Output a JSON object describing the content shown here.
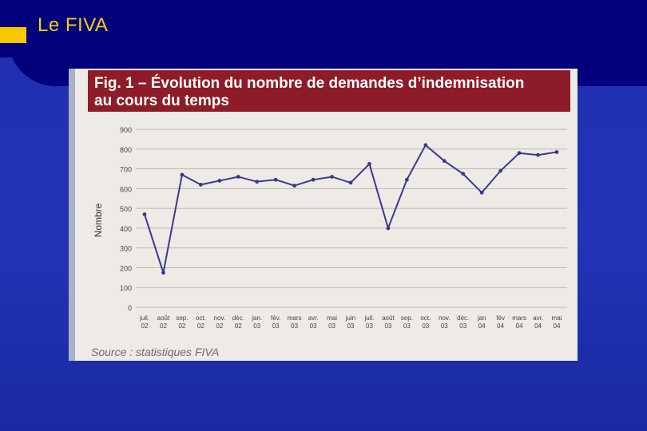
{
  "slide": {
    "title": "Le FIVA"
  },
  "figure": {
    "title_line1": "Fig. 1 – Évolution du nombre de demandes d’indemnisation",
    "title_line2": "au cours du temps",
    "source": "Source : statistiques FIVA"
  },
  "colors": {
    "background": "#2233b6",
    "header": "#02007d",
    "title_text": "#f4d10a",
    "bullet": "#f6c800",
    "figure_band": "#8e1c28",
    "line": "#3a3a8a",
    "grid": "#bdb8b4"
  },
  "chart_data": {
    "type": "line",
    "title": "Fig. 1 – Évolution du nombre de demandes d’indemnisation au cours du temps",
    "xlabel": "",
    "ylabel": "Nombre",
    "ylim": [
      0,
      900
    ],
    "yticks": [
      0,
      100,
      200,
      300,
      400,
      500,
      600,
      700,
      800,
      900
    ],
    "grid": true,
    "legend": "none",
    "categories": [
      [
        "juil.",
        "02"
      ],
      [
        "août",
        "02"
      ],
      [
        "sep.",
        "02"
      ],
      [
        "oct.",
        "02"
      ],
      [
        "nov.",
        "02"
      ],
      [
        "déc.",
        "02"
      ],
      [
        "jan.",
        "03"
      ],
      [
        "fév.",
        "03"
      ],
      [
        "mars",
        "03"
      ],
      [
        "avr.",
        "03"
      ],
      [
        "mai",
        "03"
      ],
      [
        "juin",
        "03"
      ],
      [
        "juil.",
        "03"
      ],
      [
        "août",
        "03"
      ],
      [
        "sep.",
        "03"
      ],
      [
        "oct.",
        "03"
      ],
      [
        "nov.",
        "03"
      ],
      [
        "déc.",
        "03"
      ],
      [
        "jan",
        "04"
      ],
      [
        "fév",
        "04"
      ],
      [
        "mars",
        "04"
      ],
      [
        "avr.",
        "04"
      ],
      [
        "mai",
        "04"
      ]
    ],
    "values": [
      470,
      175,
      670,
      620,
      640,
      660,
      635,
      645,
      615,
      645,
      660,
      630,
      725,
      400,
      645,
      820,
      740,
      675,
      580,
      690,
      780,
      770,
      785
    ]
  }
}
